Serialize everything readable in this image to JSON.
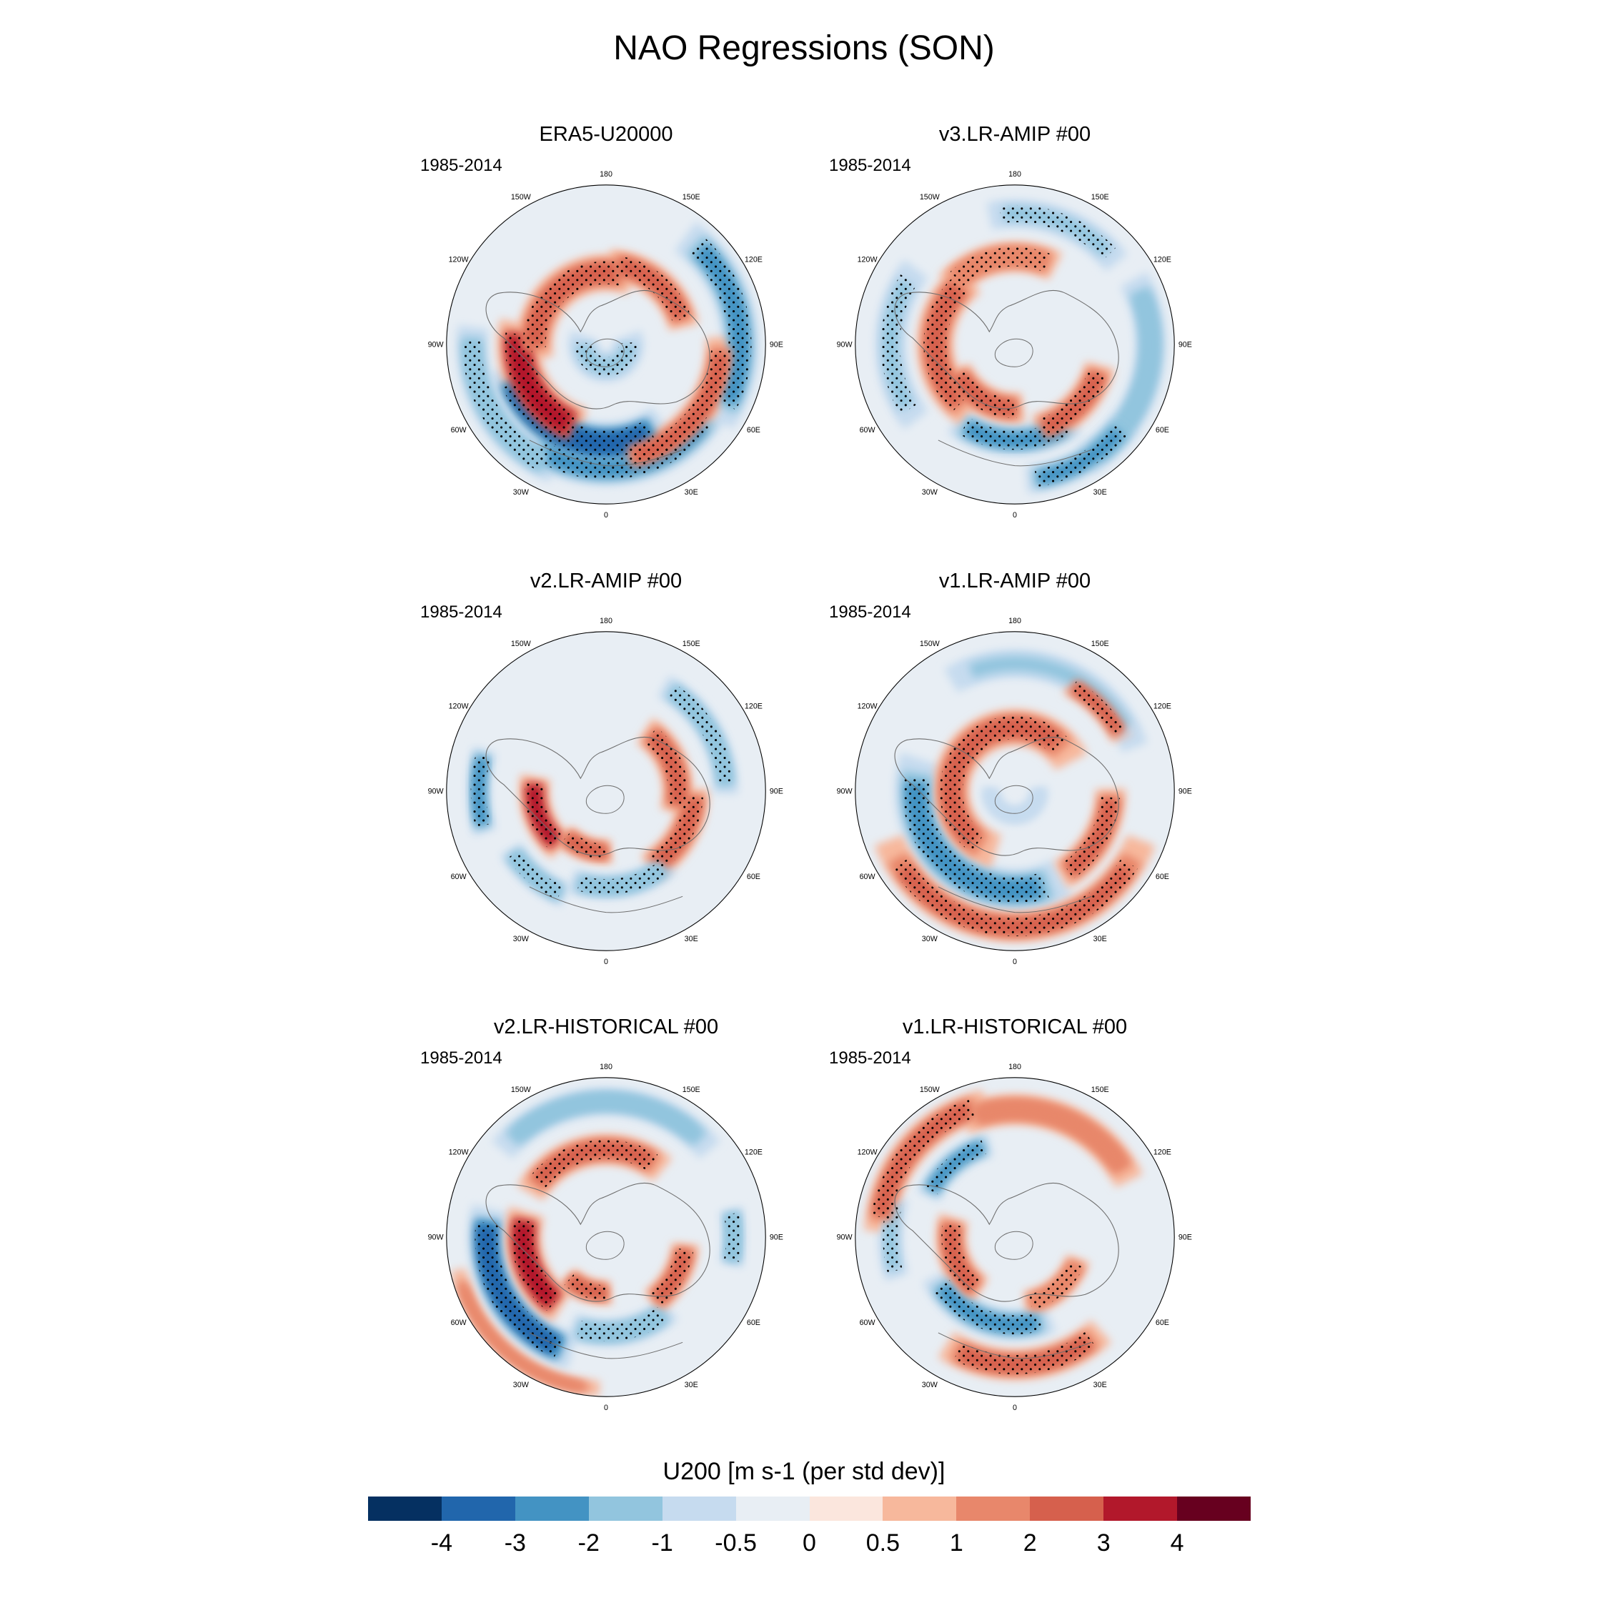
{
  "title": "NAO Regressions (SON)",
  "colorbar": {
    "title": "U200 [m s-1 (per std dev)]",
    "labels": [
      "-4",
      "-3",
      "-2",
      "-1",
      "-0.5",
      "0",
      "0.5",
      "1",
      "2",
      "3",
      "4"
    ],
    "colors": [
      "#053061",
      "#2166ac",
      "#4393c3",
      "#92c5de",
      "#c6dbef",
      "#e8eef4",
      "#fbe6dd",
      "#f7b89c",
      "#e8876b",
      "#d6604d",
      "#b2182b",
      "#67001f"
    ]
  },
  "longitude_labels": [
    "180",
    "150E",
    "120E",
    "90E",
    "60E",
    "30E",
    "0",
    "30W",
    "60W",
    "90W",
    "120W",
    "150W"
  ],
  "panels": [
    {
      "title": "ERA5-U20000",
      "period": "1985-2014",
      "features": [
        {
          "r": 0.84,
          "a": 100,
          "w": 0.12,
          "s": 70,
          "v": -2.4,
          "dots": true
        },
        {
          "r": 0.78,
          "a": 10,
          "w": 0.11,
          "s": 80,
          "v": -2.2,
          "dots": true
        },
        {
          "r": 0.62,
          "a": 340,
          "w": 0.14,
          "s": 90,
          "v": -3.6,
          "dots": true
        },
        {
          "r": 0.84,
          "a": 300,
          "w": 0.1,
          "s": 60,
          "v": -1.8,
          "dots": true
        },
        {
          "r": 0.55,
          "a": 300,
          "w": 0.14,
          "s": 70,
          "v": 3.6,
          "dots": true
        },
        {
          "r": 0.45,
          "a": 220,
          "w": 0.12,
          "s": 100,
          "v": 2.6,
          "dots": true
        },
        {
          "r": 0.5,
          "a": 140,
          "w": 0.1,
          "s": 60,
          "v": 2.0,
          "dots": true
        },
        {
          "r": 0.72,
          "a": 50,
          "w": 0.1,
          "s": 70,
          "v": 2.4,
          "dots": true
        },
        {
          "r": 0.14,
          "a": 0,
          "w": 0.1,
          "s": 180,
          "v": -1.2,
          "dots": true
        }
      ]
    },
    {
      "title": "v3.LR-AMIP  #00",
      "period": "1985-2014",
      "features": [
        {
          "r": 0.6,
          "a": 0,
          "w": 0.1,
          "s": 60,
          "v": -2.2,
          "dots": true
        },
        {
          "r": 0.85,
          "a": 75,
          "w": 0.1,
          "s": 70,
          "v": -1.8,
          "dots": false
        },
        {
          "r": 0.85,
          "a": 30,
          "w": 0.09,
          "s": 40,
          "v": -2.4,
          "dots": true
        },
        {
          "r": 0.82,
          "a": 160,
          "w": 0.09,
          "s": 50,
          "v": -1.2,
          "dots": true
        },
        {
          "r": 0.78,
          "a": 270,
          "w": 0.1,
          "s": 60,
          "v": -1.4,
          "dots": true
        },
        {
          "r": 0.55,
          "a": 45,
          "w": 0.1,
          "s": 50,
          "v": 2.6,
          "dots": true
        },
        {
          "r": 0.5,
          "a": 270,
          "w": 0.12,
          "s": 90,
          "v": 2.0,
          "dots": true
        },
        {
          "r": 0.4,
          "a": 330,
          "w": 0.1,
          "s": 60,
          "v": 2.6,
          "dots": true
        },
        {
          "r": 0.55,
          "a": 190,
          "w": 0.1,
          "s": 60,
          "v": 1.8,
          "dots": true
        }
      ]
    },
    {
      "title": "v2.LR-AMIP  #00",
      "period": "1985-2014",
      "features": [
        {
          "r": 0.45,
          "a": 290,
          "w": 0.1,
          "s": 50,
          "v": 3.0,
          "dots": true
        },
        {
          "r": 0.38,
          "a": 340,
          "w": 0.08,
          "s": 40,
          "v": 2.2,
          "dots": true
        },
        {
          "r": 0.55,
          "a": 60,
          "w": 0.1,
          "s": 50,
          "v": 2.8,
          "dots": true
        },
        {
          "r": 0.45,
          "a": 110,
          "w": 0.1,
          "s": 60,
          "v": 2.0,
          "dots": true
        },
        {
          "r": 0.8,
          "a": 270,
          "w": 0.08,
          "s": 30,
          "v": -2.2,
          "dots": true
        },
        {
          "r": 0.6,
          "a": 10,
          "w": 0.08,
          "s": 50,
          "v": -1.8,
          "dots": true
        },
        {
          "r": 0.75,
          "a": 120,
          "w": 0.08,
          "s": 50,
          "v": -1.8,
          "dots": true
        },
        {
          "r": 0.7,
          "a": 320,
          "w": 0.08,
          "s": 30,
          "v": -1.6,
          "dots": true
        }
      ]
    },
    {
      "title": "v1.LR-AMIP  #00",
      "period": "1985-2014",
      "features": [
        {
          "r": 0.62,
          "a": 320,
          "w": 0.14,
          "s": 110,
          "v": -2.8,
          "dots": true
        },
        {
          "r": 0.8,
          "a": 160,
          "w": 0.09,
          "s": 80,
          "v": -1.2,
          "dots": false
        },
        {
          "r": 0.4,
          "a": 230,
          "w": 0.12,
          "s": 180,
          "v": 2.4,
          "dots": true
        },
        {
          "r": 0.85,
          "a": 0,
          "w": 0.1,
          "s": 110,
          "v": 2.4,
          "dots": true
        },
        {
          "r": 0.6,
          "a": 60,
          "w": 0.1,
          "s": 50,
          "v": 2.6,
          "dots": true
        },
        {
          "r": 0.75,
          "a": 135,
          "w": 0.07,
          "s": 30,
          "v": 2.0,
          "dots": true
        },
        {
          "r": 0.15,
          "a": 0,
          "w": 0.08,
          "s": 180,
          "v": -1.0,
          "dots": false
        }
      ]
    },
    {
      "title": "v2.LR-HISTORICAL  #00",
      "period": "1985-2014",
      "features": [
        {
          "r": 0.75,
          "a": 300,
          "w": 0.12,
          "s": 70,
          "v": -3.2,
          "dots": true
        },
        {
          "r": 0.6,
          "a": 10,
          "w": 0.09,
          "s": 50,
          "v": -2.0,
          "dots": true
        },
        {
          "r": 0.8,
          "a": 90,
          "w": 0.08,
          "s": 20,
          "v": -2.0,
          "dots": true
        },
        {
          "r": 0.85,
          "a": 180,
          "w": 0.09,
          "s": 80,
          "v": -1.6,
          "dots": false
        },
        {
          "r": 0.52,
          "a": 290,
          "w": 0.12,
          "s": 60,
          "v": 3.2,
          "dots": true
        },
        {
          "r": 0.55,
          "a": 190,
          "w": 0.1,
          "s": 80,
          "v": 2.0,
          "dots": true
        },
        {
          "r": 0.5,
          "a": 60,
          "w": 0.09,
          "s": 40,
          "v": 2.2,
          "dots": true
        },
        {
          "r": 0.35,
          "a": 340,
          "w": 0.08,
          "s": 40,
          "v": 2.0,
          "dots": true
        },
        {
          "r": 0.95,
          "a": 320,
          "w": 0.05,
          "s": 60,
          "v": 1.8,
          "dots": false
        }
      ]
    },
    {
      "title": "v1.LR-HISTORICAL  #00",
      "period": "1985-2014",
      "features": [
        {
          "r": 0.55,
          "a": 340,
          "w": 0.1,
          "s": 70,
          "v": -2.4,
          "dots": true
        },
        {
          "r": 0.6,
          "a": 220,
          "w": 0.08,
          "s": 40,
          "v": -2.4,
          "dots": true
        },
        {
          "r": 0.78,
          "a": 270,
          "w": 0.08,
          "s": 30,
          "v": -1.4,
          "dots": true
        },
        {
          "r": 0.8,
          "a": 5,
          "w": 0.1,
          "s": 60,
          "v": 2.6,
          "dots": true
        },
        {
          "r": 0.85,
          "a": 230,
          "w": 0.1,
          "s": 60,
          "v": 2.4,
          "dots": true
        },
        {
          "r": 0.8,
          "a": 160,
          "w": 0.1,
          "s": 70,
          "v": 1.8,
          "dots": false
        },
        {
          "r": 0.4,
          "a": 290,
          "w": 0.1,
          "s": 60,
          "v": 2.0,
          "dots": true
        },
        {
          "r": 0.42,
          "a": 40,
          "w": 0.08,
          "s": 50,
          "v": 1.8,
          "dots": true
        }
      ]
    }
  ]
}
